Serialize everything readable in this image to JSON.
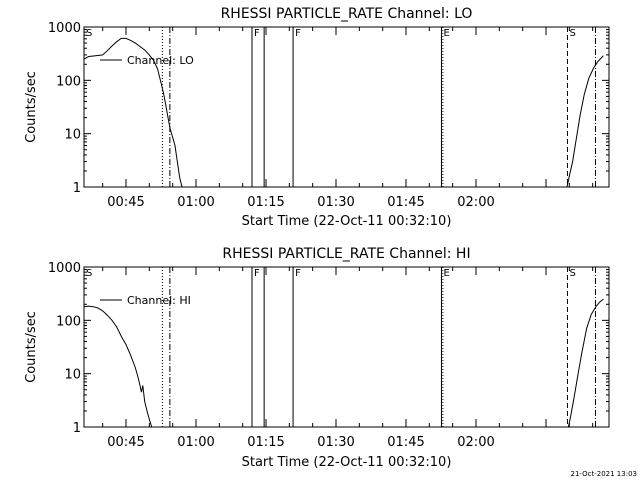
{
  "footer": "21-Oct-2021 13:03",
  "chart_data": [
    {
      "type": "line",
      "title": "RHESSI PARTICLE_RATE Channel: LO",
      "ylabel": "Counts/sec",
      "xlabel": "Start Time (22-Oct-11 00:32:10)",
      "yscale": "log",
      "ylim": [
        1,
        1000
      ],
      "xlim_minutes_after_0000": [
        36.0,
        148.5
      ],
      "x_ticks": [
        {
          "label": "00:45",
          "t": 45
        },
        {
          "label": "01:00",
          "t": 60
        },
        {
          "label": "01:15",
          "t": 75
        },
        {
          "label": "01:30",
          "t": 90
        },
        {
          "label": "01:45",
          "t": 105
        },
        {
          "label": "02:00",
          "t": 120
        }
      ],
      "y_ticks": [
        {
          "label": "1",
          "v": 1
        },
        {
          "label": "10",
          "v": 10
        },
        {
          "label": "100",
          "v": 100
        },
        {
          "label": "1000",
          "v": 1000
        }
      ],
      "legend": "Channel: LO",
      "series": [
        {
          "name": "Channel: LO",
          "segments": [
            [
              [
                36.0,
                250
              ],
              [
                37.0,
                280
              ],
              [
                38.5,
                290
              ],
              [
                40.0,
                300
              ],
              [
                41.0,
                360
              ],
              [
                42.0,
                440
              ],
              [
                43.0,
                530
              ],
              [
                44.0,
                610
              ],
              [
                45.0,
                610
              ],
              [
                46.0,
                560
              ],
              [
                47.0,
                500
              ],
              [
                48.0,
                430
              ],
              [
                49.0,
                370
              ],
              [
                50.0,
                300
              ],
              [
                51.0,
                230
              ],
              [
                51.8,
                160
              ],
              [
                52.5,
                90
              ],
              [
                53.0,
                60
              ],
              [
                53.5,
                35
              ],
              [
                54.0,
                20
              ],
              [
                54.5,
                12
              ],
              [
                55.0,
                8.5
              ],
              [
                55.5,
                6
              ],
              [
                56.0,
                3
              ],
              [
                56.5,
                1.5
              ],
              [
                57.0,
                1
              ]
            ],
            [
              [
                139.5,
                1
              ],
              [
                140.0,
                1.6
              ],
              [
                140.7,
                3
              ],
              [
                141.5,
                8
              ],
              [
                142.3,
                22
              ],
              [
                143.2,
                55
              ],
              [
                144.2,
                110
              ],
              [
                145.2,
                170
              ],
              [
                146.2,
                230
              ],
              [
                147.3,
                290
              ]
            ]
          ]
        }
      ],
      "vlines": [
        {
          "t": 35.5,
          "style": "solid",
          "label": "S"
        },
        {
          "t": 52.8,
          "style": "dot",
          "label": ""
        },
        {
          "t": 54.4,
          "style": "dashdot",
          "label": ""
        },
        {
          "t": 72.0,
          "style": "solid",
          "label": "F"
        },
        {
          "t": 74.6,
          "style": "solid",
          "label": ""
        },
        {
          "t": 80.8,
          "style": "solid",
          "label": "F"
        },
        {
          "t": 112.6,
          "style": "solid",
          "label": "E"
        },
        {
          "t": 112.9,
          "style": "dot",
          "label": ""
        },
        {
          "t": 139.6,
          "style": "dash",
          "label": "S"
        },
        {
          "t": 145.6,
          "style": "dashdot",
          "label": ""
        }
      ]
    },
    {
      "type": "line",
      "title": "RHESSI PARTICLE_RATE Channel: HI",
      "ylabel": "Counts/sec",
      "xlabel": "Start Time (22-Oct-11 00:32:10)",
      "yscale": "log",
      "ylim": [
        1,
        1000
      ],
      "xlim_minutes_after_0000": [
        36.0,
        148.5
      ],
      "x_ticks": [
        {
          "label": "00:45",
          "t": 45
        },
        {
          "label": "01:00",
          "t": 60
        },
        {
          "label": "01:15",
          "t": 75
        },
        {
          "label": "01:30",
          "t": 90
        },
        {
          "label": "01:45",
          "t": 105
        },
        {
          "label": "02:00",
          "t": 120
        }
      ],
      "y_ticks": [
        {
          "label": "1",
          "v": 1
        },
        {
          "label": "10",
          "v": 10
        },
        {
          "label": "100",
          "v": 100
        },
        {
          "label": "1000",
          "v": 1000
        }
      ],
      "legend": "Channel: HI",
      "series": [
        {
          "name": "Channel: HI",
          "segments": [
            [
              [
                36.0,
                180
              ],
              [
                37.0,
                185
              ],
              [
                38.0,
                180
              ],
              [
                39.0,
                170
              ],
              [
                40.0,
                150
              ],
              [
                41.0,
                125
              ],
              [
                42.0,
                100
              ],
              [
                43.0,
                75
              ],
              [
                44.0,
                50
              ],
              [
                45.0,
                35
              ],
              [
                46.0,
                22
              ],
              [
                47.0,
                13
              ],
              [
                47.5,
                9
              ],
              [
                48.0,
                6
              ],
              [
                48.3,
                4.5
              ],
              [
                48.6,
                6
              ],
              [
                49.0,
                3
              ],
              [
                49.5,
                2
              ],
              [
                50.0,
                1.4
              ],
              [
                50.5,
                1
              ]
            ],
            [
              [
                139.8,
                1
              ],
              [
                140.3,
                1.6
              ],
              [
                141.0,
                3.5
              ],
              [
                141.8,
                9
              ],
              [
                142.7,
                25
              ],
              [
                143.7,
                70
              ],
              [
                144.7,
                130
              ],
              [
                145.7,
                180
              ],
              [
                146.5,
                220
              ],
              [
                147.3,
                250
              ]
            ]
          ]
        }
      ],
      "vlines": [
        {
          "t": 35.5,
          "style": "solid",
          "label": "S"
        },
        {
          "t": 52.8,
          "style": "dot",
          "label": ""
        },
        {
          "t": 54.4,
          "style": "dashdot",
          "label": ""
        },
        {
          "t": 72.0,
          "style": "solid",
          "label": "F"
        },
        {
          "t": 74.6,
          "style": "solid",
          "label": ""
        },
        {
          "t": 80.8,
          "style": "solid",
          "label": "F"
        },
        {
          "t": 112.6,
          "style": "solid",
          "label": "E"
        },
        {
          "t": 112.9,
          "style": "dot",
          "label": ""
        },
        {
          "t": 139.6,
          "style": "dash",
          "label": "S"
        },
        {
          "t": 145.6,
          "style": "dashdot",
          "label": ""
        }
      ]
    }
  ]
}
